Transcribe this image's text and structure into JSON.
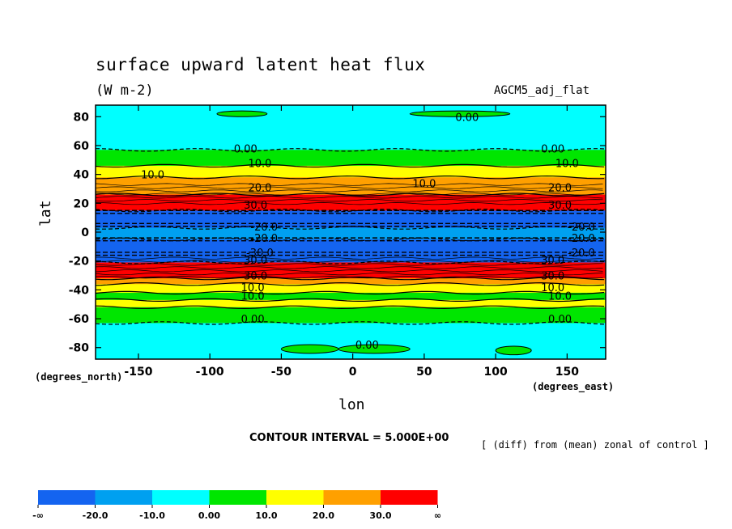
{
  "chart_data": {
    "type": "heatmap",
    "title": "surface upward latent heat flux",
    "subtitle": "(W m-2)",
    "experiment": "AGCM5_adj_flat",
    "xlabel": "lon",
    "ylabel": "lat",
    "x_unit_label": "(degrees_east)",
    "y_unit_label": "(degrees_north)",
    "xlim": [
      -180,
      177
    ],
    "ylim": [
      -88,
      88
    ],
    "x_ticks": [
      -150,
      -100,
      -50,
      0,
      50,
      100,
      150
    ],
    "x_tick_labels": [
      "-150",
      "-100",
      "-50",
      "0",
      "50",
      "100",
      "150"
    ],
    "y_ticks": [
      80,
      60,
      40,
      20,
      0,
      -20,
      -40,
      -60,
      -80
    ],
    "y_tick_labels": [
      "80",
      "60",
      "40",
      "20",
      "0",
      "-20",
      "-40",
      "-60",
      "-80"
    ],
    "contour_interval_text": "CONTOUR INTERVAL = 5.000E+00",
    "description_text": "[ (diff) from (mean) zonal of control ]",
    "colorbar": {
      "colors": [
        "#1464f0",
        "#00a0f0",
        "#00ffff",
        "#00e600",
        "#ffff00",
        "#ffa000",
        "#ff0000"
      ],
      "labels": [
        "-∞",
        "-20.0",
        "-10.0",
        "0.00",
        "10.0",
        "20.0",
        "30.0",
        "∞"
      ]
    },
    "zonal_profile": [
      {
        "lat": 88,
        "value": -5
      },
      {
        "lat": 60,
        "value": -5
      },
      {
        "lat": 57,
        "value": 2
      },
      {
        "lat": 50,
        "value": 8
      },
      {
        "lat": 46,
        "value": 14
      },
      {
        "lat": 38,
        "value": 20
      },
      {
        "lat": 32,
        "value": 28
      },
      {
        "lat": 26,
        "value": 38
      },
      {
        "lat": 19,
        "value": 38
      },
      {
        "lat": 15,
        "value": -30
      },
      {
        "lat": 5,
        "value": -30
      },
      {
        "lat": 3,
        "value": -15
      },
      {
        "lat": -3,
        "value": -15
      },
      {
        "lat": -5,
        "value": -30
      },
      {
        "lat": -17,
        "value": -30
      },
      {
        "lat": -21,
        "value": 38
      },
      {
        "lat": -29,
        "value": 38
      },
      {
        "lat": -32,
        "value": 28
      },
      {
        "lat": -36,
        "value": 14
      },
      {
        "lat": -42,
        "value": 8
      },
      {
        "lat": -47,
        "value": 14
      },
      {
        "lat": -52,
        "value": 8
      },
      {
        "lat": -60,
        "value": 2
      },
      {
        "lat": -63,
        "value": -5
      },
      {
        "lat": -88,
        "value": -5
      }
    ],
    "patches": [
      {
        "lon_range": [
          -50,
          -10
        ],
        "lat_range": [
          -78,
          -84
        ],
        "value": 2
      },
      {
        "lon_range": [
          -10,
          40
        ],
        "lat_range": [
          -78,
          -84
        ],
        "value": 2
      },
      {
        "lon_range": [
          100,
          125
        ],
        "lat_range": [
          -79,
          -85
        ],
        "value": 2
      },
      {
        "lon_range": [
          40,
          110
        ],
        "lat_range": [
          84,
          80
        ],
        "value": 2
      },
      {
        "lon_range": [
          -95,
          -60
        ],
        "lat_range": [
          84,
          80
        ],
        "value": 2
      }
    ],
    "contour_labels": [
      {
        "text": "0.00",
        "lon": 80,
        "lat": 80
      },
      {
        "text": "0.00",
        "lon": -75,
        "lat": 58
      },
      {
        "text": "0.00",
        "lon": 140,
        "lat": 58
      },
      {
        "text": "10.0",
        "lon": -65,
        "lat": 48
      },
      {
        "text": "10.0",
        "lon": 150,
        "lat": 48
      },
      {
        "text": "10.0",
        "lon": -140,
        "lat": 40
      },
      {
        "text": "10.0",
        "lon": 50,
        "lat": 34
      },
      {
        "text": "20.0",
        "lon": -65,
        "lat": 31
      },
      {
        "text": "20.0",
        "lon": 145,
        "lat": 31
      },
      {
        "text": "30.0",
        "lon": -68,
        "lat": 19
      },
      {
        "text": "30.0",
        "lon": 145,
        "lat": 19
      },
      {
        "text": "-20.0",
        "lon": -62,
        "lat": 4
      },
      {
        "text": "-20.0",
        "lon": 160,
        "lat": 4
      },
      {
        "text": "-20.0",
        "lon": -62,
        "lat": -4
      },
      {
        "text": "-20.0",
        "lon": 160,
        "lat": -4
      },
      {
        "text": "-30.0",
        "lon": -65,
        "lat": -14
      },
      {
        "text": "-20.0",
        "lon": 160,
        "lat": -14
      },
      {
        "text": "30.0",
        "lon": -68,
        "lat": -19
      },
      {
        "text": "30.0",
        "lon": 140,
        "lat": -19
      },
      {
        "text": "30.0",
        "lon": -68,
        "lat": -30
      },
      {
        "text": "30.0",
        "lon": 140,
        "lat": -30
      },
      {
        "text": "10.0",
        "lon": -70,
        "lat": -38
      },
      {
        "text": "10.0",
        "lon": 140,
        "lat": -38
      },
      {
        "text": "10.0",
        "lon": -70,
        "lat": -44
      },
      {
        "text": "10.0",
        "lon": 145,
        "lat": -44
      },
      {
        "text": "0.00",
        "lon": -70,
        "lat": -60
      },
      {
        "text": "0.00",
        "lon": 145,
        "lat": -60
      },
      {
        "text": "0.00",
        "lon": 10,
        "lat": -78
      }
    ]
  }
}
